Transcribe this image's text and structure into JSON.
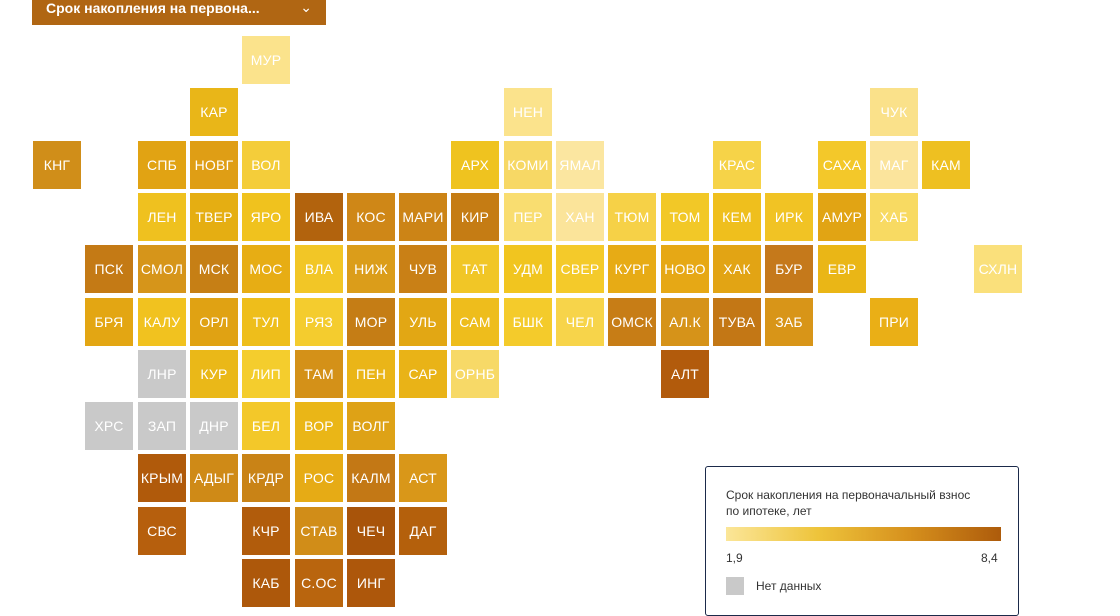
{
  "dropdown": {
    "label": "Срок накопления на первона...",
    "icon": "chevron-down-icon"
  },
  "legend": {
    "title": "Срок накопления на первоначальный взнос по ипотеке, лет",
    "min_label": "1,9",
    "max_label": "8,4",
    "min": 1.9,
    "max": 8.4,
    "no_data_label": "Нет данных",
    "no_data_color": "#c9c9c9",
    "gradient_colors": [
      "#fbe699",
      "#eec43b",
      "#d6901d",
      "#ad5b0b"
    ]
  },
  "tiles": [
    {
      "label": "МУР",
      "col": 4,
      "row": 0,
      "color": "#fbe38c"
    },
    {
      "label": "КАР",
      "col": 3,
      "row": 1,
      "color": "#e9b618"
    },
    {
      "label": "НЕН",
      "col": 9,
      "row": 1,
      "color": "#fbe38c"
    },
    {
      "label": "ЧУК",
      "col": 16,
      "row": 1,
      "color": "#fae18a"
    },
    {
      "label": "КНГ",
      "col": 0,
      "row": 2,
      "color": "#d08e19"
    },
    {
      "label": "СПБ",
      "col": 2,
      "row": 2,
      "color": "#e1a313"
    },
    {
      "label": "НОВГ",
      "col": 3,
      "row": 2,
      "color": "#df9e15"
    },
    {
      "label": "ВОЛ",
      "col": 4,
      "row": 2,
      "color": "#f4cd3a"
    },
    {
      "label": "АРХ",
      "col": 8,
      "row": 2,
      "color": "#efc31f"
    },
    {
      "label": "КОМИ",
      "col": 9,
      "row": 2,
      "color": "#f7d865"
    },
    {
      "label": "ЯМАЛ",
      "col": 10,
      "row": 2,
      "color": "#fbe6a0"
    },
    {
      "label": "КРАС",
      "col": 13,
      "row": 2,
      "color": "#f6d348"
    },
    {
      "label": "САХА",
      "col": 15,
      "row": 2,
      "color": "#f3c82a"
    },
    {
      "label": "МАГ",
      "col": 16,
      "row": 2,
      "color": "#fbe49c"
    },
    {
      "label": "КАМ",
      "col": 17,
      "row": 2,
      "color": "#eec021"
    },
    {
      "label": "ЛЕН",
      "col": 2,
      "row": 3,
      "color": "#efc11f"
    },
    {
      "label": "ТВЕР",
      "col": 3,
      "row": 3,
      "color": "#e5ae12"
    },
    {
      "label": "ЯРО",
      "col": 4,
      "row": 3,
      "color": "#f0c21e"
    },
    {
      "label": "ИВА",
      "col": 5,
      "row": 3,
      "color": "#b2630d"
    },
    {
      "label": "КОС",
      "col": 6,
      "row": 3,
      "color": "#cf8717"
    },
    {
      "label": "МАРИ",
      "col": 7,
      "row": 3,
      "color": "#cc8416"
    },
    {
      "label": "КИР",
      "col": 8,
      "row": 3,
      "color": "#c57c14"
    },
    {
      "label": "ПЕР",
      "col": 9,
      "row": 3,
      "color": "#f9dd70"
    },
    {
      "label": "ХАН",
      "col": 10,
      "row": 3,
      "color": "#fbe49a"
    },
    {
      "label": "ТЮМ",
      "col": 11,
      "row": 3,
      "color": "#f6d147"
    },
    {
      "label": "ТОМ",
      "col": 12,
      "row": 3,
      "color": "#f2c827"
    },
    {
      "label": "КЕМ",
      "col": 13,
      "row": 3,
      "color": "#efbf1d"
    },
    {
      "label": "ИРК",
      "col": 14,
      "row": 3,
      "color": "#f1c324"
    },
    {
      "label": "АМУР",
      "col": 15,
      "row": 3,
      "color": "#e1a414"
    },
    {
      "label": "ХАБ",
      "col": 16,
      "row": 3,
      "color": "#f8da62"
    },
    {
      "label": "ПСК",
      "col": 1,
      "row": 4,
      "color": "#c47a15"
    },
    {
      "label": "СМОЛ",
      "col": 2,
      "row": 4,
      "color": "#d6951a"
    },
    {
      "label": "МСК",
      "col": 3,
      "row": 4,
      "color": "#c67f15"
    },
    {
      "label": "МОС",
      "col": 4,
      "row": 4,
      "color": "#e7ad14"
    },
    {
      "label": "ВЛА",
      "col": 5,
      "row": 4,
      "color": "#f2c626"
    },
    {
      "label": "НИЖ",
      "col": 6,
      "row": 4,
      "color": "#db9d1a"
    },
    {
      "label": "ЧУВ",
      "col": 7,
      "row": 4,
      "color": "#c98016"
    },
    {
      "label": "ТАТ",
      "col": 8,
      "row": 4,
      "color": "#f1c626"
    },
    {
      "label": "УДМ",
      "col": 9,
      "row": 4,
      "color": "#f1c51f"
    },
    {
      "label": "СВЕР",
      "col": 10,
      "row": 4,
      "color": "#f4ca2a"
    },
    {
      "label": "КУРГ",
      "col": 11,
      "row": 4,
      "color": "#e7ab15"
    },
    {
      "label": "НОВО",
      "col": 12,
      "row": 4,
      "color": "#e6a815"
    },
    {
      "label": "ХАК",
      "col": 13,
      "row": 4,
      "color": "#e2a414"
    },
    {
      "label": "БУР",
      "col": 14,
      "row": 4,
      "color": "#c5791b"
    },
    {
      "label": "ЕВР",
      "col": 15,
      "row": 4,
      "color": "#eab616"
    },
    {
      "label": "СХЛН",
      "col": 18,
      "row": 4,
      "color": "#fae07b"
    },
    {
      "label": "БРЯ",
      "col": 1,
      "row": 5,
      "color": "#e3a613"
    },
    {
      "label": "КАЛУ",
      "col": 2,
      "row": 5,
      "color": "#f1c21f"
    },
    {
      "label": "ОРЛ",
      "col": 3,
      "row": 5,
      "color": "#e0a213"
    },
    {
      "label": "ТУЛ",
      "col": 4,
      "row": 5,
      "color": "#eebe1b"
    },
    {
      "label": "РЯЗ",
      "col": 5,
      "row": 5,
      "color": "#f4cc2e"
    },
    {
      "label": "МОР",
      "col": 6,
      "row": 5,
      "color": "#c57d15"
    },
    {
      "label": "УЛЬ",
      "col": 7,
      "row": 5,
      "color": "#e2a714"
    },
    {
      "label": "САМ",
      "col": 8,
      "row": 5,
      "color": "#eebd1c"
    },
    {
      "label": "БШК",
      "col": 9,
      "row": 5,
      "color": "#f4cb2b"
    },
    {
      "label": "ЧЕЛ",
      "col": 10,
      "row": 5,
      "color": "#f7d44a"
    },
    {
      "label": "ОМСК",
      "col": 11,
      "row": 5,
      "color": "#c77d16"
    },
    {
      "label": "АЛ.К",
      "col": 12,
      "row": 5,
      "color": "#d69319"
    },
    {
      "label": "ТУВА",
      "col": 13,
      "row": 5,
      "color": "#c37715"
    },
    {
      "label": "ЗАБ",
      "col": 14,
      "row": 5,
      "color": "#d89518"
    },
    {
      "label": "ПРИ",
      "col": 16,
      "row": 5,
      "color": "#eaaf16"
    },
    {
      "label": "ЛНР",
      "col": 2,
      "row": 6,
      "color": "#c9c9c9"
    },
    {
      "label": "КУР",
      "col": 3,
      "row": 6,
      "color": "#eab818"
    },
    {
      "label": "ЛИП",
      "col": 4,
      "row": 6,
      "color": "#f4cd2d"
    },
    {
      "label": "ТАМ",
      "col": 5,
      "row": 6,
      "color": "#d49118"
    },
    {
      "label": "ПЕН",
      "col": 6,
      "row": 6,
      "color": "#eab518"
    },
    {
      "label": "САР",
      "col": 7,
      "row": 6,
      "color": "#e9b317"
    },
    {
      "label": "ОРНБ",
      "col": 8,
      "row": 6,
      "color": "#f7d967"
    },
    {
      "label": "АЛТ",
      "col": 12,
      "row": 6,
      "color": "#b25b0c"
    },
    {
      "label": "ХРС",
      "col": 1,
      "row": 7,
      "color": "#c9c9c9"
    },
    {
      "label": "ЗАП",
      "col": 2,
      "row": 7,
      "color": "#c9c9c9"
    },
    {
      "label": "ДНР",
      "col": 3,
      "row": 7,
      "color": "#c9c9c9"
    },
    {
      "label": "БЕЛ",
      "col": 4,
      "row": 7,
      "color": "#f3c829"
    },
    {
      "label": "ВОР",
      "col": 5,
      "row": 7,
      "color": "#eab617"
    },
    {
      "label": "ВОЛГ",
      "col": 6,
      "row": 7,
      "color": "#dea216"
    },
    {
      "label": "КРЫМ",
      "col": 2,
      "row": 8,
      "color": "#b05a0b"
    },
    {
      "label": "АДЫГ",
      "col": 3,
      "row": 8,
      "color": "#cf8a17"
    },
    {
      "label": "КРДР",
      "col": 4,
      "row": 8,
      "color": "#c98316"
    },
    {
      "label": "РОС",
      "col": 5,
      "row": 8,
      "color": "#e6ab15"
    },
    {
      "label": "КАЛМ",
      "col": 6,
      "row": 8,
      "color": "#c37815"
    },
    {
      "label": "АСТ",
      "col": 7,
      "row": 8,
      "color": "#d99719"
    },
    {
      "label": "СВС",
      "col": 2,
      "row": 9,
      "color": "#b65f0d"
    },
    {
      "label": "КЧР",
      "col": 4,
      "row": 9,
      "color": "#b15c0c"
    },
    {
      "label": "СТАВ",
      "col": 5,
      "row": 9,
      "color": "#d18d18"
    },
    {
      "label": "ЧЕЧ",
      "col": 6,
      "row": 9,
      "color": "#a8540a"
    },
    {
      "label": "ДАГ",
      "col": 7,
      "row": 9,
      "color": "#b4600c"
    },
    {
      "label": "КАБ",
      "col": 4,
      "row": 10,
      "color": "#ad580b"
    },
    {
      "label": "С.ОС",
      "col": 5,
      "row": 10,
      "color": "#b9650e"
    },
    {
      "label": "ИНГ",
      "col": 6,
      "row": 10,
      "color": "#ad570b"
    }
  ]
}
